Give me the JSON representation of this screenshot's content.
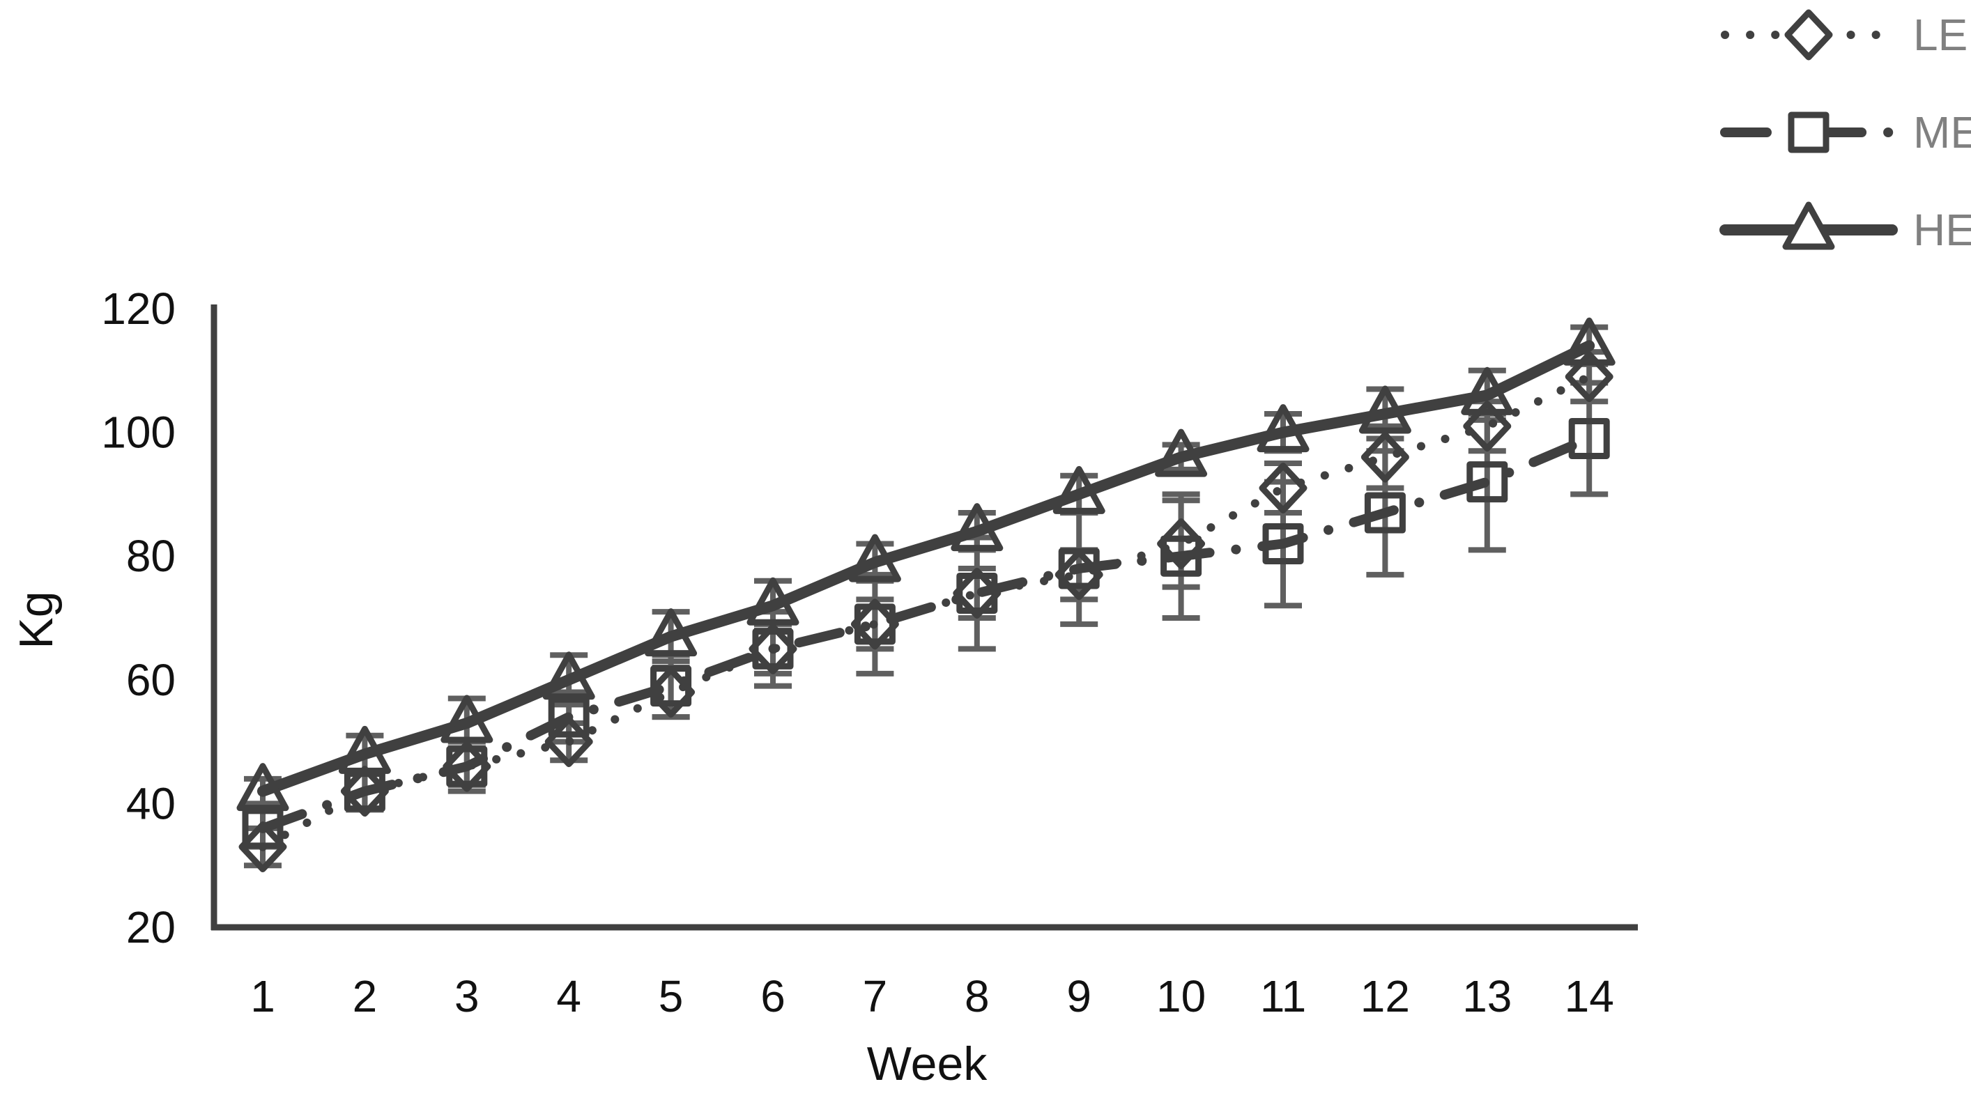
{
  "chart_data": {
    "type": "line",
    "title": "",
    "xlabel": "Week",
    "ylabel": "Kg",
    "categories": [
      1,
      2,
      3,
      4,
      5,
      6,
      7,
      8,
      9,
      10,
      11,
      12,
      13,
      14
    ],
    "y_ticks": [
      20,
      40,
      60,
      80,
      100,
      120
    ],
    "ylim": [
      20,
      120
    ],
    "grid": false,
    "legend_position": "top-right",
    "series": [
      {
        "name": "LE",
        "marker": "diamond",
        "line_style": "dotted",
        "values": [
          33,
          42,
          46,
          50,
          58,
          65,
          69,
          74,
          77,
          82,
          91,
          96,
          101,
          109
        ],
        "errors": [
          3,
          3,
          3,
          3,
          4,
          4,
          4,
          4,
          4,
          7,
          4,
          5,
          4,
          4
        ]
      },
      {
        "name": "ME",
        "marker": "square",
        "line_style": "dashdot",
        "values": [
          36,
          42,
          46,
          54,
          59,
          65,
          69,
          74,
          78,
          80,
          82,
          87,
          92,
          99
        ],
        "errors": [
          3,
          3,
          4,
          4,
          5,
          6,
          8,
          9,
          9,
          10,
          10,
          10,
          11,
          9
        ]
      },
      {
        "name": "HE",
        "marker": "triangle",
        "line_style": "solid",
        "values": [
          42,
          48,
          53,
          60,
          67,
          72,
          79,
          84,
          90,
          96,
          100,
          103,
          106,
          114
        ],
        "errors": [
          2,
          3,
          4,
          4,
          4,
          4,
          3,
          3,
          3,
          2,
          3,
          4,
          4,
          3
        ]
      }
    ],
    "colors": {
      "series_stroke": "#404040",
      "error_bar": "#5f5f5f",
      "axis_line": "#404040",
      "tick_text": "#111111",
      "legend_text": "#808080",
      "background": "#ffffff"
    }
  }
}
